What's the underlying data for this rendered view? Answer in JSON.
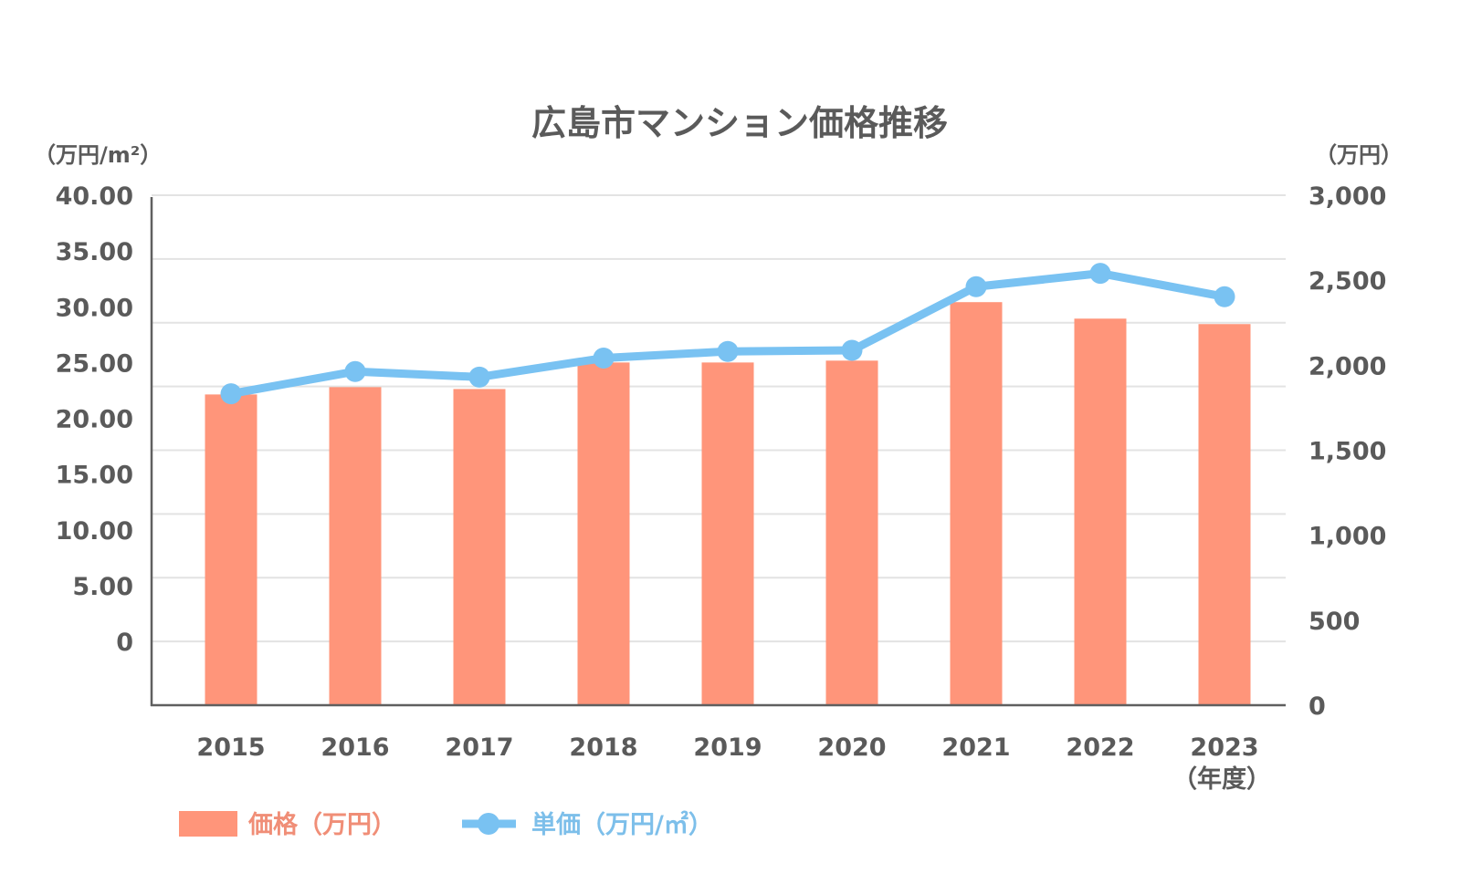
{
  "chart_data": {
    "type": "bar",
    "title": "広島市マンション価格推移",
    "categories": [
      "2015",
      "2016",
      "2017",
      "2018",
      "2019",
      "2020",
      "2021",
      "2022",
      "2023"
    ],
    "xlabel": "（年度）",
    "series": [
      {
        "name": "価格（万円）",
        "type": "bar",
        "axis": "right",
        "color": "#FF957A",
        "values": [
          1828,
          1871,
          1860,
          2016,
          2016,
          2027,
          2371,
          2274,
          2242
        ]
      },
      {
        "name": "単価（万円/㎡）",
        "type": "line",
        "axis": "left",
        "color": "#79C2F2",
        "values": [
          22.2,
          24.2,
          23.7,
          25.4,
          26.0,
          26.1,
          31.8,
          33.0,
          30.9
        ]
      }
    ],
    "left_axis": {
      "label": "（万円/m²）",
      "ylim": [
        0,
        40
      ],
      "ticks": [
        "40.00",
        "35.00",
        "30.00",
        "25.00",
        "20.00",
        "15.00",
        "10.00",
        "5.00",
        "0"
      ]
    },
    "right_axis": {
      "label": "（万円）",
      "ylim": [
        0,
        3000
      ],
      "ticks": [
        "3,000",
        "2,500",
        "2,000",
        "1,500",
        "1,000",
        "500",
        "0"
      ]
    },
    "grid": true,
    "legend": {
      "position": "bottom-left",
      "items": [
        {
          "label": "価格（万円）",
          "marker": "bar",
          "color": "#FF957A",
          "text_color": "#F08E77"
        },
        {
          "label": "単価（万円/㎡）",
          "marker": "line-dot",
          "color": "#79C2F2",
          "text_color": "#7DBFEA"
        }
      ]
    }
  }
}
